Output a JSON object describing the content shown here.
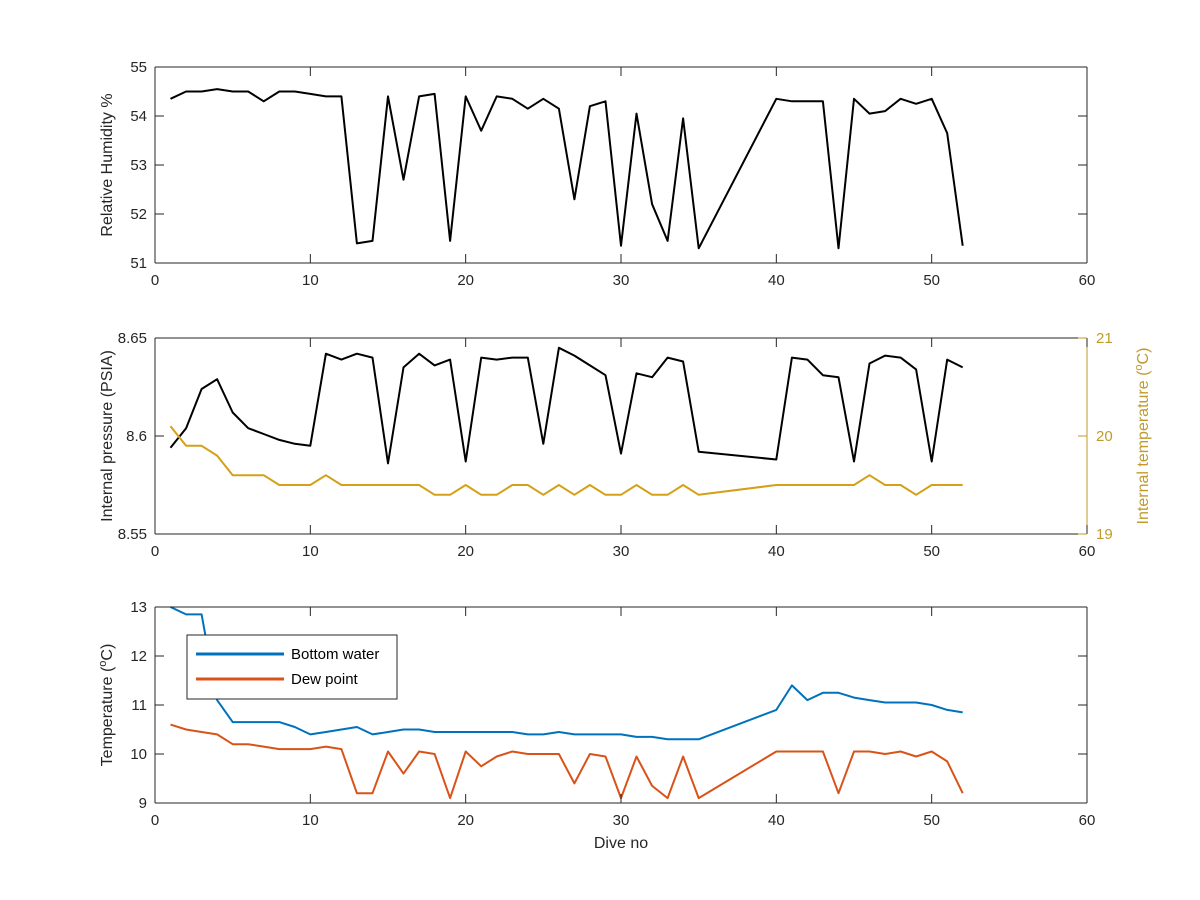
{
  "chart_data": [
    {
      "type": "line",
      "xlabel": "",
      "ylabel": "Relative Humidity %",
      "xlim": [
        0,
        60
      ],
      "ylim": [
        51,
        55
      ],
      "xticks": [
        0,
        10,
        20,
        30,
        40,
        50,
        60
      ],
      "yticks": [
        51,
        52,
        53,
        54,
        55
      ],
      "series": [
        {
          "color": "#000000",
          "x": [
            1,
            2,
            3,
            4,
            5,
            6,
            7,
            8,
            9,
            10,
            11,
            12,
            13,
            14,
            15,
            16,
            17,
            18,
            19,
            20,
            21,
            22,
            23,
            24,
            25,
            26,
            27,
            28,
            29,
            30,
            31,
            32,
            33,
            34,
            35,
            40,
            41,
            42,
            43,
            44,
            45,
            46,
            47,
            48,
            49,
            50,
            51,
            52
          ],
          "y": [
            54.35,
            54.5,
            54.5,
            54.55,
            54.5,
            54.5,
            54.3,
            54.5,
            54.5,
            54.45,
            54.4,
            54.4,
            51.4,
            51.45,
            54.4,
            52.7,
            54.4,
            54.45,
            51.45,
            54.4,
            53.7,
            54.4,
            54.35,
            54.15,
            54.35,
            54.15,
            52.3,
            54.2,
            54.3,
            51.35,
            54.05,
            52.2,
            51.45,
            53.95,
            51.3,
            54.35,
            54.3,
            54.3,
            54.3,
            51.3,
            54.35,
            54.05,
            54.1,
            54.35,
            54.25,
            54.35,
            53.65,
            51.35
          ]
        }
      ]
    },
    {
      "type": "line",
      "xlabel": "",
      "ylabel": "Internal pressure (PSIA)",
      "y2label": "Internal temperature (°C)",
      "xlim": [
        0,
        60
      ],
      "ylim": [
        8.55,
        8.65
      ],
      "y2lim": [
        19,
        21
      ],
      "xticks": [
        0,
        10,
        20,
        30,
        40,
        50,
        60
      ],
      "yticks": [
        8.55,
        8.6,
        8.65
      ],
      "y2ticks": [
        19,
        20,
        21
      ],
      "series": [
        {
          "axis": "left",
          "color": "#000000",
          "x": [
            1,
            2,
            3,
            4,
            5,
            6,
            7,
            8,
            9,
            10,
            11,
            12,
            13,
            14,
            15,
            16,
            17,
            18,
            19,
            20,
            21,
            22,
            23,
            24,
            25,
            26,
            27,
            28,
            29,
            30,
            31,
            32,
            33,
            34,
            35,
            40,
            41,
            42,
            43,
            44,
            45,
            46,
            47,
            48,
            49,
            50,
            51,
            52
          ],
          "y": [
            8.594,
            8.604,
            8.624,
            8.629,
            8.612,
            8.604,
            8.601,
            8.598,
            8.596,
            8.595,
            8.642,
            8.639,
            8.642,
            8.64,
            8.586,
            8.635,
            8.642,
            8.636,
            8.639,
            8.587,
            8.64,
            8.639,
            8.64,
            8.64,
            8.596,
            8.645,
            8.641,
            8.636,
            8.631,
            8.591,
            8.632,
            8.63,
            8.64,
            8.638,
            8.592,
            8.588,
            8.64,
            8.639,
            8.631,
            8.63,
            8.587,
            8.637,
            8.641,
            8.64,
            8.634,
            8.587,
            8.639,
            8.635
          ]
        },
        {
          "axis": "right",
          "color": "#D4A017",
          "x": [
            1,
            2,
            3,
            4,
            5,
            6,
            7,
            8,
            9,
            10,
            11,
            12,
            13,
            14,
            15,
            16,
            17,
            18,
            19,
            20,
            21,
            22,
            23,
            24,
            25,
            26,
            27,
            28,
            29,
            30,
            31,
            32,
            33,
            34,
            35,
            40,
            41,
            42,
            43,
            44,
            45,
            46,
            47,
            48,
            49,
            50,
            51,
            52
          ],
          "y": [
            20.1,
            19.9,
            19.9,
            19.8,
            19.6,
            19.6,
            19.6,
            19.5,
            19.5,
            19.5,
            19.6,
            19.5,
            19.5,
            19.5,
            19.5,
            19.5,
            19.5,
            19.4,
            19.4,
            19.5,
            19.4,
            19.4,
            19.5,
            19.5,
            19.4,
            19.5,
            19.4,
            19.5,
            19.4,
            19.4,
            19.5,
            19.4,
            19.4,
            19.5,
            19.4,
            19.5,
            19.5,
            19.5,
            19.5,
            19.5,
            19.5,
            19.6,
            19.5,
            19.5,
            19.4,
            19.5,
            19.5,
            19.5
          ]
        }
      ]
    },
    {
      "type": "line",
      "xlabel": "Dive no",
      "ylabel": "Temperature (°C)",
      "xlim": [
        0,
        60
      ],
      "ylim": [
        9,
        13
      ],
      "xticks": [
        0,
        10,
        20,
        30,
        40,
        50,
        60
      ],
      "yticks": [
        9,
        10,
        11,
        12,
        13
      ],
      "legend_position": "top-left",
      "series": [
        {
          "name": "Bottom water",
          "color": "#0072BD",
          "x": [
            1,
            2,
            3,
            4,
            5,
            6,
            7,
            8,
            9,
            10,
            11,
            12,
            13,
            14,
            15,
            16,
            17,
            18,
            19,
            20,
            21,
            22,
            23,
            24,
            25,
            26,
            27,
            28,
            29,
            30,
            31,
            32,
            33,
            34,
            35,
            40,
            41,
            42,
            43,
            44,
            45,
            46,
            47,
            48,
            49,
            50,
            51,
            52
          ],
          "y": [
            13.0,
            12.85,
            12.85,
            11.1,
            10.65,
            10.65,
            10.65,
            10.65,
            10.55,
            10.4,
            10.45,
            10.5,
            10.55,
            10.4,
            10.45,
            10.5,
            10.5,
            10.45,
            10.45,
            10.45,
            10.45,
            10.45,
            10.45,
            10.4,
            10.4,
            10.45,
            10.4,
            10.4,
            10.4,
            10.4,
            10.35,
            10.35,
            10.3,
            10.3,
            10.3,
            10.9,
            11.4,
            11.1,
            11.25,
            11.25,
            11.15,
            11.1,
            11.05,
            11.05,
            11.05,
            11.0,
            10.9,
            10.85
          ]
        },
        {
          "name": "Dew point",
          "color": "#D95319",
          "x": [
            1,
            2,
            3,
            4,
            5,
            6,
            7,
            8,
            9,
            10,
            11,
            12,
            13,
            14,
            15,
            16,
            17,
            18,
            19,
            20,
            21,
            22,
            23,
            24,
            25,
            26,
            27,
            28,
            29,
            30,
            31,
            32,
            33,
            34,
            35,
            40,
            41,
            42,
            43,
            44,
            45,
            46,
            47,
            48,
            49,
            50,
            51,
            52
          ],
          "y": [
            10.6,
            10.5,
            10.45,
            10.4,
            10.2,
            10.2,
            10.15,
            10.1,
            10.1,
            10.1,
            10.15,
            10.1,
            9.2,
            9.2,
            10.05,
            9.6,
            10.05,
            10.0,
            9.1,
            10.05,
            9.75,
            9.95,
            10.05,
            10.0,
            10.0,
            10.0,
            9.4,
            10.0,
            9.95,
            9.1,
            9.95,
            9.35,
            9.1,
            9.95,
            9.1,
            10.05,
            10.05,
            10.05,
            10.05,
            9.2,
            10.05,
            10.05,
            10.0,
            10.05,
            9.95,
            10.05,
            9.85,
            9.2
          ]
        }
      ]
    }
  ]
}
